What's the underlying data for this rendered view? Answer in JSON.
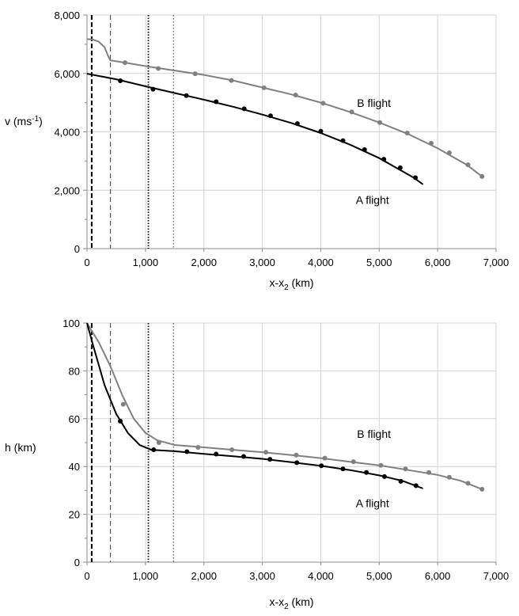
{
  "chart_data": [
    {
      "type": "line",
      "title": "",
      "xlabel_main": "x-x",
      "xlabel_sub": "2",
      "xlabel_unit": " (km)",
      "ylabel_main": "v (ms",
      "ylabel_sup": "-1",
      "ylabel_end": ")",
      "xlim": [
        0,
        7000
      ],
      "ylim": [
        0,
        8000
      ],
      "xticks": [
        0,
        1000,
        2000,
        3000,
        4000,
        5000,
        6000,
        7000
      ],
      "xtick_labels": [
        "0",
        "1,000",
        "2,000",
        "3,000",
        "4,000",
        "5,000",
        "6,000",
        "7,000"
      ],
      "yticks": [
        0,
        2000,
        4000,
        6000,
        8000
      ],
      "ytick_labels": [
        "0",
        "2,000",
        "4,000",
        "6,000",
        "8,000"
      ],
      "grid": true,
      "vlines": [
        {
          "x": 80,
          "style": "dashed-thick"
        },
        {
          "x": 400,
          "style": "dashed"
        },
        {
          "x": 1050,
          "style": "dotted-thick"
        },
        {
          "x": 1480,
          "style": "dotted"
        }
      ],
      "series": [
        {
          "name": "B flight",
          "label_x": 4620,
          "label_y": 4850,
          "color": "#808080",
          "line": [
            [
              0,
              7180
            ],
            [
              100,
              7160
            ],
            [
              200,
              7090
            ],
            [
              300,
              6900
            ],
            [
              360,
              6600
            ],
            [
              400,
              6450
            ],
            [
              650,
              6370
            ],
            [
              1000,
              6250
            ],
            [
              1500,
              6100
            ],
            [
              2000,
              5950
            ],
            [
              2500,
              5760
            ],
            [
              3000,
              5520
            ],
            [
              3500,
              5280
            ],
            [
              4000,
              5000
            ],
            [
              4500,
              4680
            ],
            [
              5000,
              4320
            ],
            [
              5500,
              3920
            ],
            [
              6000,
              3440
            ],
            [
              6500,
              2870
            ],
            [
              6760,
              2470
            ]
          ],
          "markers": [
            [
              650,
              6370
            ],
            [
              1220,
              6170
            ],
            [
              1850,
              5990
            ],
            [
              2470,
              5760
            ],
            [
              3030,
              5510
            ],
            [
              3570,
              5260
            ],
            [
              4040,
              4980
            ],
            [
              4530,
              4680
            ],
            [
              5010,
              4320
            ],
            [
              5480,
              3960
            ],
            [
              5890,
              3610
            ],
            [
              6200,
              3280
            ],
            [
              6520,
              2870
            ],
            [
              6760,
              2470
            ]
          ]
        },
        {
          "name": "A flight",
          "label_x": 4600,
          "label_y": 1530,
          "color": "#000000",
          "line": [
            [
              0,
              5990
            ],
            [
              500,
              5800
            ],
            [
              1000,
              5560
            ],
            [
              1500,
              5330
            ],
            [
              2000,
              5100
            ],
            [
              2500,
              4860
            ],
            [
              3000,
              4590
            ],
            [
              3500,
              4300
            ],
            [
              4000,
              3960
            ],
            [
              4500,
              3560
            ],
            [
              5000,
              3100
            ],
            [
              5300,
              2760
            ],
            [
              5600,
              2420
            ],
            [
              5750,
              2200
            ]
          ],
          "markers": [
            [
              570,
              5750
            ],
            [
              1130,
              5460
            ],
            [
              1700,
              5240
            ],
            [
              2210,
              5030
            ],
            [
              2690,
              4790
            ],
            [
              3140,
              4550
            ],
            [
              3600,
              4280
            ],
            [
              4000,
              4020
            ],
            [
              4380,
              3700
            ],
            [
              4750,
              3390
            ],
            [
              5080,
              3060
            ],
            [
              5360,
              2770
            ],
            [
              5620,
              2430
            ]
          ]
        }
      ]
    },
    {
      "type": "line",
      "title": "",
      "xlabel_main": "x-x",
      "xlabel_sub": "2",
      "xlabel_unit": " (km)",
      "ylabel_main": "h (km)",
      "ylabel_sup": "",
      "ylabel_end": "",
      "xlim": [
        0,
        7000
      ],
      "ylim": [
        0,
        100
      ],
      "xticks": [
        0,
        1000,
        2000,
        3000,
        4000,
        5000,
        6000,
        7000
      ],
      "xtick_labels": [
        "0",
        "1,000",
        "2,000",
        "3,000",
        "4,000",
        "5,000",
        "6,000",
        "7,000"
      ],
      "yticks": [
        0,
        20,
        40,
        60,
        80,
        100
      ],
      "ytick_labels": [
        "0",
        "20",
        "40",
        "60",
        "80",
        "100"
      ],
      "grid": true,
      "vlines": [
        {
          "x": 80,
          "style": "dashed-thick"
        },
        {
          "x": 400,
          "style": "dashed"
        },
        {
          "x": 1050,
          "style": "dotted-thick"
        },
        {
          "x": 1480,
          "style": "dotted"
        }
      ],
      "series": [
        {
          "name": "B flight",
          "label_x": 4620,
          "label_y": 52,
          "color": "#808080",
          "line": [
            [
              0,
              100
            ],
            [
              200,
              92
            ],
            [
              400,
              82
            ],
            [
              600,
              70
            ],
            [
              800,
              60
            ],
            [
              1000,
              54
            ],
            [
              1200,
              51
            ],
            [
              1500,
              49
            ],
            [
              2000,
              48
            ],
            [
              2500,
              47
            ],
            [
              3000,
              46
            ],
            [
              3500,
              44.8
            ],
            [
              4000,
              43.5
            ],
            [
              4500,
              42
            ],
            [
              5000,
              40.5
            ],
            [
              5500,
              38.5
            ],
            [
              6000,
              36.5
            ],
            [
              6400,
              34
            ],
            [
              6760,
              30.5
            ]
          ],
          "markers": [
            [
              620,
              66
            ],
            [
              1230,
              50
            ],
            [
              1900,
              48
            ],
            [
              2480,
              47
            ],
            [
              3060,
              46
            ],
            [
              3580,
              44.8
            ],
            [
              4070,
              43.5
            ],
            [
              4560,
              42
            ],
            [
              5030,
              40.5
            ],
            [
              5450,
              39
            ],
            [
              5850,
              37.5
            ],
            [
              6200,
              35.5
            ],
            [
              6520,
              33
            ],
            [
              6760,
              30.5
            ]
          ]
        },
        {
          "name": "A flight",
          "label_x": 4600,
          "label_y": 23,
          "color": "#000000",
          "line": [
            [
              0,
              100
            ],
            [
              100,
              91
            ],
            [
              300,
              74
            ],
            [
              500,
              62
            ],
            [
              700,
              54
            ],
            [
              900,
              49
            ],
            [
              1100,
              47
            ],
            [
              1500,
              46.4
            ],
            [
              2000,
              45.3
            ],
            [
              2500,
              44.3
            ],
            [
              3000,
              43.2
            ],
            [
              3500,
              41.8
            ],
            [
              4000,
              40.3
            ],
            [
              4500,
              38.5
            ],
            [
              5000,
              36.3
            ],
            [
              5400,
              34
            ],
            [
              5750,
              30.8
            ]
          ],
          "markers": [
            [
              570,
              59
            ],
            [
              1140,
              47
            ],
            [
              1710,
              46.2
            ],
            [
              2210,
              45.2
            ],
            [
              2680,
              44.2
            ],
            [
              3130,
              43
            ],
            [
              3590,
              41.6
            ],
            [
              4010,
              40.3
            ],
            [
              4380,
              39
            ],
            [
              4780,
              37.5
            ],
            [
              5090,
              35.8
            ],
            [
              5370,
              33.8
            ],
            [
              5630,
              32
            ]
          ]
        }
      ]
    }
  ]
}
